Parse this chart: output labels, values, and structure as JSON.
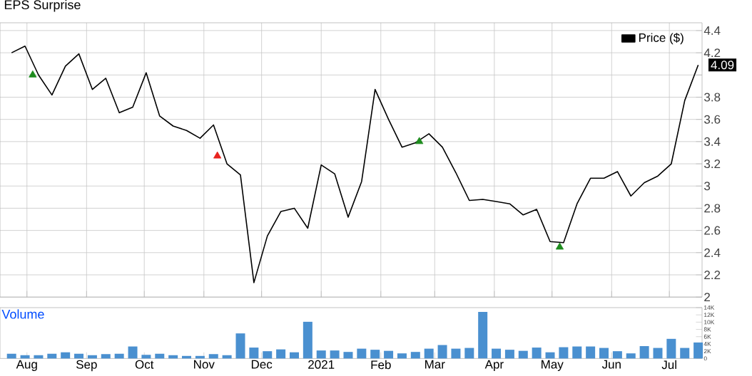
{
  "chart_data": [
    {
      "type": "line",
      "title": "EPS Surprise",
      "legend": "top right",
      "grid": true,
      "tick_labels": "y",
      "xlim": [
        "2020-07-18",
        "2021-07-18"
      ],
      "xticks": [
        {
          "value": "2020-08-01",
          "label": null
        },
        {
          "value": "2020-09-01",
          "label": null
        },
        {
          "value": "2020-10-01",
          "label": null
        },
        {
          "value": "2020-11-01",
          "label": null
        },
        {
          "value": "2020-12-01",
          "label": null
        },
        {
          "value": "2021-01-01",
          "label": null
        },
        {
          "value": "2021-02-01",
          "label": null
        },
        {
          "value": "2021-03-01",
          "label": null
        },
        {
          "value": "2021-04-01",
          "label": null
        },
        {
          "value": "2021-05-01",
          "label": null
        },
        {
          "value": "2021-06-01",
          "label": null
        },
        {
          "value": "2021-07-01",
          "label": null
        }
      ],
      "ylim": [
        2,
        4.47
      ],
      "yticks": [
        2,
        2.2,
        2.4,
        2.6,
        2.8,
        3,
        3.2,
        3.4,
        3.6,
        3.8,
        {
          "value": 4,
          "label": null
        },
        4.2,
        4.4
      ],
      "x": [
        "2020-07-24",
        "2020-07-31",
        "2020-08-07",
        "2020-08-14",
        "2020-08-21",
        "2020-08-28",
        "2020-09-04",
        "2020-09-11",
        "2020-09-18",
        "2020-09-25",
        "2020-10-02",
        "2020-10-09",
        "2020-10-16",
        "2020-10-23",
        "2020-10-30",
        "2020-11-06",
        "2020-11-13",
        "2020-11-20",
        "2020-11-27",
        "2020-12-04",
        "2020-12-11",
        "2020-12-18",
        "2020-12-25",
        "2021-01-01",
        "2021-01-08",
        "2021-01-15",
        "2021-01-22",
        "2021-01-29",
        "2021-02-05",
        "2021-02-12",
        "2021-02-19",
        "2021-02-26",
        "2021-03-05",
        "2021-03-12",
        "2021-03-19",
        "2021-03-26",
        "2021-04-02",
        "2021-04-09",
        "2021-04-16",
        "2021-04-23",
        "2021-04-30",
        "2021-05-07",
        "2021-05-14",
        "2021-05-21",
        "2021-05-28",
        "2021-06-04",
        "2021-06-11",
        "2021-06-18",
        "2021-06-25",
        "2021-07-02",
        "2021-07-09",
        "2021-07-16"
      ],
      "series": [
        {
          "name": "Price ($)",
          "color": "#000000",
          "values": [
            4.2,
            4.26,
            4.0,
            3.82,
            4.08,
            4.19,
            3.87,
            3.97,
            3.66,
            3.71,
            4.02,
            3.63,
            3.54,
            3.5,
            3.43,
            3.55,
            3.2,
            3.1,
            2.13,
            2.55,
            2.77,
            2.8,
            2.62,
            3.19,
            3.11,
            2.72,
            3.04,
            3.87,
            3.6,
            3.35,
            3.39,
            3.47,
            3.35,
            3.12,
            2.87,
            2.88,
            2.86,
            2.84,
            2.74,
            2.79,
            2.5,
            2.49,
            2.84,
            3.07,
            3.07,
            3.13,
            2.91,
            3.03,
            3.09,
            3.2,
            3.77,
            4.09
          ]
        },
        {
          "type": "scatter",
          "marker": "triangle",
          "color": "#1e8c1e",
          "x": [
            "2020-08-04",
            "2021-02-21",
            "2021-05-05"
          ],
          "values": [
            4.0,
            3.4,
            2.45
          ]
        },
        {
          "type": "scatter",
          "marker": "triangle",
          "color": "#e8231e",
          "x": [
            "2020-11-08"
          ],
          "values": [
            3.27
          ]
        }
      ],
      "annotations": [
        {
          "text": "4.09",
          "x": "2021-07-16",
          "y": 4.09
        }
      ]
    },
    {
      "type": "bar",
      "ylabel": "Volume",
      "xlim": [
        "2020-07-18",
        "2021-07-18"
      ],
      "xticks": [
        {
          "value": "2020-08-01",
          "label": "Aug"
        },
        {
          "value": "2020-09-01",
          "label": "Sep"
        },
        {
          "value": "2020-10-01",
          "label": "Oct"
        },
        {
          "value": "2020-11-01",
          "label": "Nov"
        },
        {
          "value": "2020-12-01",
          "label": "Dec"
        },
        {
          "value": "2021-01-01",
          "label": "2021"
        },
        {
          "value": "2021-02-01",
          "label": "Feb"
        },
        {
          "value": "2021-03-01",
          "label": "Mar"
        },
        {
          "value": "2021-04-01",
          "label": "Apr"
        },
        {
          "value": "2021-05-01",
          "label": "May"
        },
        {
          "value": "2021-06-01",
          "label": "Jun"
        },
        {
          "value": "2021-07-01",
          "label": "Jul"
        }
      ],
      "ylim": [
        0,
        14000
      ],
      "yticks": [
        0,
        {
          "value": 2000,
          "label": "2K"
        },
        {
          "value": 4000,
          "label": "4K"
        },
        {
          "value": 6000,
          "label": "6K"
        },
        {
          "value": 8000,
          "label": "8K"
        },
        {
          "value": 10000,
          "label": "10K"
        },
        {
          "value": 12000,
          "label": "12K"
        },
        {
          "value": 14000,
          "label": "14K"
        }
      ],
      "x": [
        "2020-07-24",
        "2020-07-31",
        "2020-08-07",
        "2020-08-14",
        "2020-08-21",
        "2020-08-28",
        "2020-09-04",
        "2020-09-11",
        "2020-09-18",
        "2020-09-25",
        "2020-10-02",
        "2020-10-09",
        "2020-10-16",
        "2020-10-23",
        "2020-10-30",
        "2020-11-06",
        "2020-11-13",
        "2020-11-20",
        "2020-11-27",
        "2020-12-04",
        "2020-12-11",
        "2020-12-18",
        "2020-12-25",
        "2021-01-01",
        "2021-01-08",
        "2021-01-15",
        "2021-01-22",
        "2021-01-29",
        "2021-02-05",
        "2021-02-12",
        "2021-02-19",
        "2021-02-26",
        "2021-03-05",
        "2021-03-12",
        "2021-03-19",
        "2021-03-26",
        "2021-04-02",
        "2021-04-09",
        "2021-04-16",
        "2021-04-23",
        "2021-04-30",
        "2021-05-07",
        "2021-05-14",
        "2021-05-21",
        "2021-05-28",
        "2021-06-04",
        "2021-06-11",
        "2021-06-18",
        "2021-06-25",
        "2021-07-02",
        "2021-07-09",
        "2021-07-16"
      ],
      "series": [
        {
          "color": "#4a90d0",
          "values": [
            1300,
            900,
            900,
            1300,
            1700,
            1300,
            900,
            1200,
            1300,
            3300,
            1000,
            1300,
            900,
            700,
            700,
            1200,
            900,
            6900,
            3000,
            2000,
            2500,
            1700,
            10100,
            2200,
            2200,
            1800,
            2700,
            2400,
            2100,
            1400,
            1800,
            2700,
            3700,
            2700,
            2900,
            12800,
            2700,
            2400,
            2100,
            3000,
            1700,
            3100,
            3300,
            3300,
            2900,
            2000,
            1400,
            3400,
            2900,
            5400,
            2900,
            4400
          ]
        }
      ]
    }
  ]
}
